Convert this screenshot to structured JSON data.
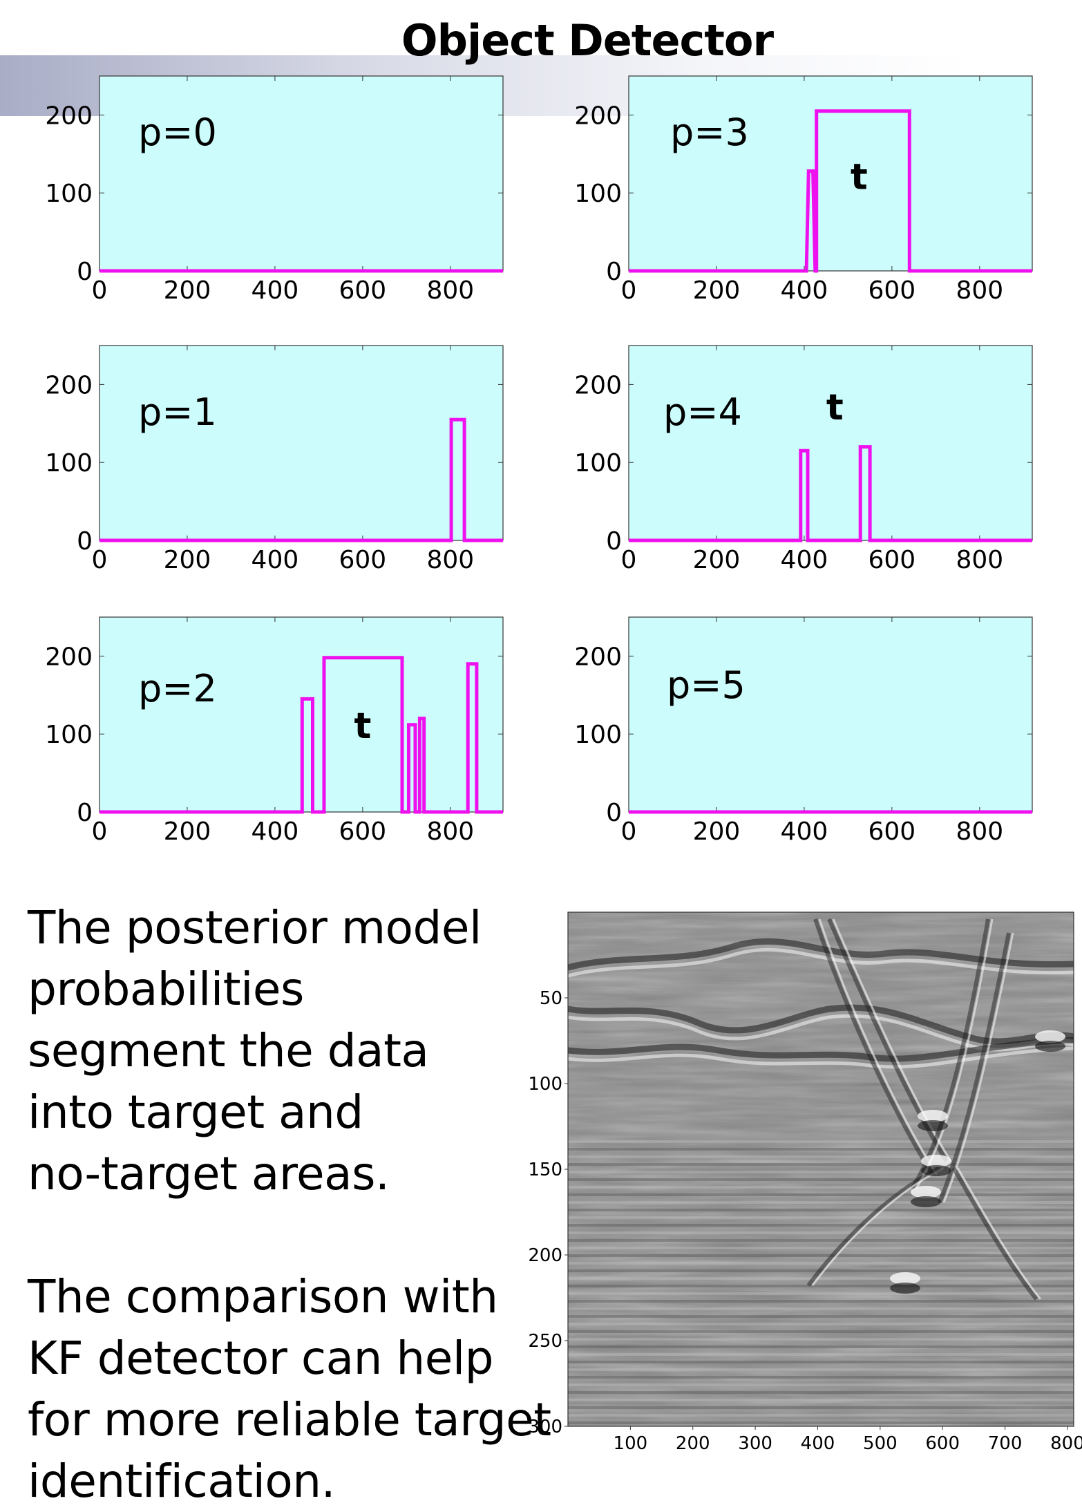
{
  "slide": {
    "title": "Object Detector",
    "paragraphs": [
      [
        "The posterior model",
        "probabilities",
        "segment the data",
        "into target  and",
        "no-target areas."
      ],
      [
        "The comparison with",
        "KF detector can help",
        "for more reliable target",
        "identification."
      ]
    ]
  },
  "colors": {
    "plot_bg": "#cdfcfc",
    "line": "#ee11ee",
    "band_start": "#a9adc6"
  },
  "chart_data": [
    {
      "type": "line",
      "label": "p=0",
      "xlim": [
        0,
        920
      ],
      "ylim": [
        0,
        250
      ],
      "xticks": [
        0,
        200,
        400,
        600,
        800
      ],
      "yticks": [
        0,
        100,
        200
      ],
      "x": [
        0,
        920
      ],
      "y": [
        0,
        0
      ],
      "annotations": []
    },
    {
      "type": "line",
      "label": "p=1",
      "xlim": [
        0,
        920
      ],
      "ylim": [
        0,
        250
      ],
      "xticks": [
        0,
        200,
        400,
        600,
        800
      ],
      "yticks": [
        0,
        100,
        200
      ],
      "x": [
        0,
        802,
        802,
        832,
        832,
        920
      ],
      "y": [
        0,
        0,
        155,
        155,
        0,
        0
      ],
      "annotations": []
    },
    {
      "type": "line",
      "label": "p=2",
      "xlim": [
        0,
        920
      ],
      "ylim": [
        0,
        250
      ],
      "xticks": [
        0,
        200,
        400,
        600,
        800
      ],
      "yticks": [
        0,
        100,
        200
      ],
      "x": [
        0,
        462,
        462,
        486,
        486,
        512,
        512,
        690,
        690,
        705,
        705,
        720,
        720,
        730,
        730,
        740,
        740,
        758,
        758,
        840,
        840,
        860,
        860,
        920
      ],
      "y": [
        0,
        0,
        145,
        145,
        0,
        0,
        198,
        198,
        0,
        0,
        112,
        112,
        0,
        0,
        120,
        120,
        0,
        0,
        0,
        0,
        190,
        190,
        0,
        0
      ],
      "annotations": [
        {
          "text": "t",
          "x": 600,
          "y": 95
        }
      ]
    },
    {
      "type": "line",
      "label": "p=3",
      "xlim": [
        0,
        920
      ],
      "ylim": [
        0,
        250
      ],
      "xticks": [
        0,
        200,
        400,
        600,
        800
      ],
      "yticks": [
        0,
        100,
        200
      ],
      "x": [
        0,
        405,
        410,
        420,
        425,
        428,
        428,
        640,
        640,
        920
      ],
      "y": [
        0,
        0,
        128,
        128,
        0,
        0,
        205,
        205,
        0,
        0
      ],
      "annotations": [
        {
          "text": "t",
          "x": 525,
          "y": 105
        }
      ]
    },
    {
      "type": "line",
      "label": "p=4",
      "xlim": [
        0,
        920
      ],
      "ylim": [
        0,
        250
      ],
      "xticks": [
        0,
        200,
        400,
        600,
        800
      ],
      "yticks": [
        0,
        100,
        200
      ],
      "x": [
        0,
        392,
        392,
        408,
        408,
        528,
        528,
        550,
        550,
        920
      ],
      "y": [
        0,
        0,
        115,
        115,
        0,
        0,
        120,
        120,
        0,
        0
      ],
      "annotations": [
        {
          "text": "t",
          "x": 470,
          "y": 155
        }
      ]
    },
    {
      "type": "line",
      "label": "p=5",
      "xlim": [
        0,
        920
      ],
      "ylim": [
        0,
        250
      ],
      "xticks": [
        0,
        200,
        400,
        600,
        800
      ],
      "yticks": [
        0,
        100,
        200
      ],
      "x": [
        0,
        920
      ],
      "y": [
        0,
        0
      ],
      "annotations": []
    },
    {
      "type": "heatmap",
      "colormap": "gray",
      "xticks": [
        100,
        200,
        300,
        400,
        500,
        600,
        700,
        800
      ],
      "yticks": [
        50,
        100,
        150,
        200,
        250,
        300
      ],
      "xlim": [
        0,
        810
      ],
      "ylim": [
        300,
        0
      ]
    }
  ]
}
